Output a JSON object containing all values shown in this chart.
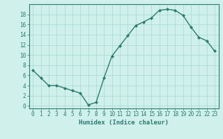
{
  "x": [
    0,
    1,
    2,
    3,
    4,
    5,
    6,
    7,
    8,
    9,
    10,
    11,
    12,
    13,
    14,
    15,
    16,
    17,
    18,
    19,
    20,
    21,
    22,
    23
  ],
  "y": [
    7,
    5.5,
    4,
    4,
    3.5,
    3,
    2.5,
    0.2,
    0.7,
    5.5,
    9.8,
    11.8,
    13.8,
    15.8,
    16.5,
    17.3,
    18.8,
    19.0,
    18.8,
    17.8,
    15.5,
    13.5,
    12.8,
    10.8
  ],
  "line_color": "#2d7a6e",
  "marker": "D",
  "marker_size": 2.0,
  "bg_color": "#cff0eb",
  "grid_color": "#a8d8d0",
  "xlabel": "Humidex (Indice chaleur)",
  "xlabel_fontsize": 6.5,
  "ylabel_ticks": [
    0,
    2,
    4,
    6,
    8,
    10,
    12,
    14,
    16,
    18
  ],
  "ylim": [
    -0.5,
    20.0
  ],
  "xlim": [
    -0.5,
    23.5
  ],
  "tick_fontsize": 5.5,
  "figure_bg": "#cff0eb",
  "linewidth": 1.0,
  "spine_color": "#2d7a6e"
}
